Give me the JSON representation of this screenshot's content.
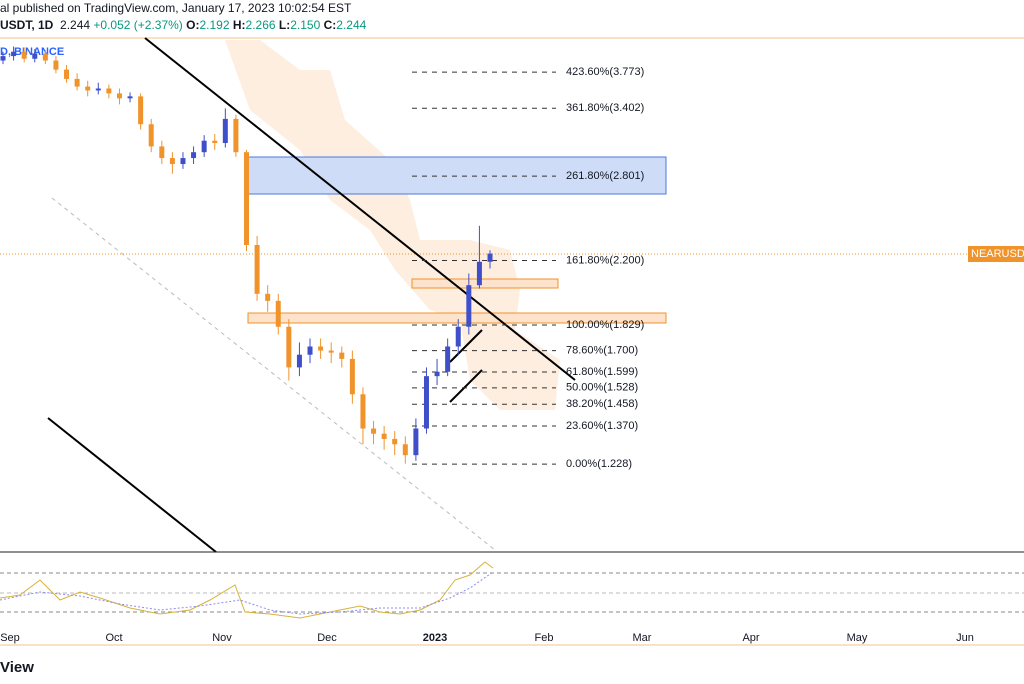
{
  "header": {
    "published": "al published on TradingView.com, January 17, 2023 10:02:54 EST",
    "symbol": "USDT, 1D",
    "change": "+0.052 (+2.37%)",
    "o": "O:",
    "h": "H:",
    "l": "L:",
    "c": "C:",
    "low_label": "2.150",
    "exchange": "D, BINANCE",
    "logo": "View"
  },
  "chart_data": {
    "type": "candlestick",
    "log_scale": true,
    "ylim": [
      0.955,
      4.16
    ],
    "up_color": "#3f4fc9",
    "down_color": "#f0932b",
    "open": [
      3.9,
      3.95,
      4.0,
      3.92,
      3.98,
      3.9,
      3.8,
      3.7,
      3.62,
      3.58,
      3.6,
      3.55,
      3.5,
      3.52,
      3.25,
      3.05,
      2.95,
      2.9,
      2.95,
      3.0,
      3.1,
      3.08,
      3.3,
      3.0,
      2.3,
      2.0,
      1.96,
      1.82,
      1.62,
      1.68,
      1.72,
      1.7,
      1.69,
      1.66,
      1.5,
      1.36,
      1.34,
      1.32,
      1.3,
      1.26,
      1.36,
      1.58,
      1.6,
      1.72,
      1.82,
      2.05,
      2.192
    ],
    "high": [
      4.0,
      4.06,
      4.05,
      4.03,
      4.02,
      3.95,
      3.85,
      3.76,
      3.68,
      3.66,
      3.64,
      3.6,
      3.56,
      3.55,
      3.3,
      3.1,
      3.0,
      3.0,
      3.05,
      3.15,
      3.16,
      3.4,
      3.34,
      3.02,
      2.36,
      2.05,
      2.0,
      1.86,
      1.74,
      1.76,
      1.76,
      1.74,
      1.72,
      1.7,
      1.53,
      1.39,
      1.37,
      1.35,
      1.33,
      1.4,
      1.62,
      1.66,
      1.76,
      1.86,
      2.12,
      2.43,
      2.266
    ],
    "low": [
      3.86,
      3.9,
      3.88,
      3.88,
      3.86,
      3.76,
      3.66,
      3.58,
      3.52,
      3.54,
      3.5,
      3.44,
      3.46,
      3.2,
      3.0,
      2.9,
      2.82,
      2.86,
      2.9,
      2.96,
      3.02,
      3.04,
      2.96,
      2.26,
      1.96,
      1.9,
      1.78,
      1.56,
      1.58,
      1.64,
      1.66,
      1.64,
      1.62,
      1.46,
      1.3,
      1.3,
      1.28,
      1.26,
      1.23,
      1.24,
      1.34,
      1.54,
      1.58,
      1.68,
      1.78,
      2.03,
      2.15
    ],
    "close": [
      3.95,
      4.0,
      3.92,
      3.98,
      3.9,
      3.8,
      3.7,
      3.62,
      3.58,
      3.6,
      3.55,
      3.5,
      3.52,
      3.25,
      3.05,
      2.95,
      2.9,
      2.95,
      3.0,
      3.1,
      3.08,
      3.3,
      3.0,
      2.3,
      2.0,
      1.96,
      1.82,
      1.62,
      1.68,
      1.72,
      1.7,
      1.69,
      1.66,
      1.5,
      1.36,
      1.34,
      1.32,
      1.3,
      1.26,
      1.36,
      1.58,
      1.6,
      1.72,
      1.82,
      2.05,
      2.192,
      2.244
    ],
    "fib_levels": [
      {
        "value": 3.773,
        "label": "423.60%(3.773)"
      },
      {
        "value": 3.402,
        "label": "361.80%(3.402)"
      },
      {
        "value": 2.801,
        "label": "261.80%(2.801)"
      },
      {
        "value": 2.2,
        "label": "161.80%(2.200)"
      },
      {
        "value": 1.829,
        "label": "100.00%(1.829)"
      },
      {
        "value": 1.7,
        "label": "78.60%(1.700)"
      },
      {
        "value": 1.599,
        "label": "61.80%(1.599)"
      },
      {
        "value": 1.528,
        "label": "50.00%(1.528)"
      },
      {
        "value": 1.458,
        "label": "38.20%(1.458)"
      },
      {
        "value": 1.37,
        "label": "23.60%(1.370)"
      },
      {
        "value": 1.228,
        "label": "0.00%(1.228)"
      }
    ],
    "price_tag": "NEARUSDT",
    "x_labels": [
      "Sep",
      "Oct",
      "Nov",
      "Dec",
      "2023",
      "Feb",
      "Mar",
      "Apr",
      "May",
      "Jun"
    ]
  }
}
